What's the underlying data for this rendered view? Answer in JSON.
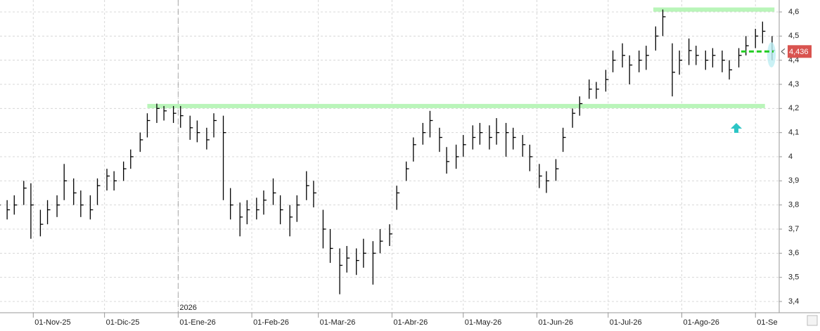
{
  "chart_data": {
    "type": "ohlc",
    "color": "#000000",
    "x": [
      "2025-10-17",
      "2025-10-21",
      "2025-10-24",
      "2025-10-28",
      "2025-10-31",
      "2025-11-04",
      "2025-11-07",
      "2025-11-11",
      "2025-11-14",
      "2025-11-18",
      "2025-11-21",
      "2025-11-25",
      "2025-11-28",
      "2025-12-02",
      "2025-12-05",
      "2025-12-09",
      "2025-12-12",
      "2025-12-16",
      "2025-12-19",
      "2025-12-23",
      "2025-12-26",
      "2025-12-30",
      "2026-01-02",
      "2026-01-06",
      "2026-01-09",
      "2026-01-13",
      "2026-01-16",
      "2026-01-20",
      "2026-01-23",
      "2026-01-27",
      "2026-01-30",
      "2026-02-03",
      "2026-02-06",
      "2026-02-10",
      "2026-02-13",
      "2026-02-17",
      "2026-02-20",
      "2026-02-24",
      "2026-02-27",
      "2026-03-03",
      "2026-03-06",
      "2026-03-10",
      "2026-03-13",
      "2026-03-17",
      "2026-03-20",
      "2026-03-24",
      "2026-03-27",
      "2026-03-31",
      "2026-04-03",
      "2026-04-07",
      "2026-04-10",
      "2026-04-14",
      "2026-04-17",
      "2026-04-21",
      "2026-04-24",
      "2026-04-28",
      "2026-05-01",
      "2026-05-05",
      "2026-05-08",
      "2026-05-12",
      "2026-05-15",
      "2026-05-19",
      "2026-05-22",
      "2026-05-26",
      "2026-05-29",
      "2026-06-02",
      "2026-06-05",
      "2026-06-09",
      "2026-06-12",
      "2026-06-16",
      "2026-06-19",
      "2026-06-23",
      "2026-06-26",
      "2026-06-30",
      "2026-07-03",
      "2026-07-07",
      "2026-07-10",
      "2026-07-14",
      "2026-07-17",
      "2026-07-21",
      "2026-07-24",
      "2026-07-28",
      "2026-07-31",
      "2026-08-04",
      "2026-08-07",
      "2026-08-11",
      "2026-08-14",
      "2026-08-18",
      "2026-08-21",
      "2026-08-25",
      "2026-08-28",
      "2026-09-01",
      "2026-09-04",
      "2026-09-08"
    ],
    "high": [
      3.83,
      3.82,
      3.84,
      3.9,
      3.89,
      3.78,
      3.82,
      3.84,
      3.97,
      3.91,
      3.86,
      3.84,
      3.91,
      3.95,
      3.94,
      3.98,
      4.03,
      4.1,
      4.18,
      4.22,
      4.21,
      4.21,
      4.21,
      4.17,
      4.15,
      4.12,
      4.18,
      4.17,
      3.87,
      3.81,
      3.82,
      3.83,
      3.86,
      3.91,
      3.84,
      3.8,
      3.84,
      3.94,
      3.9,
      3.78,
      3.7,
      3.62,
      3.63,
      3.62,
      3.66,
      3.65,
      3.7,
      3.72,
      3.88,
      3.98,
      4.08,
      4.14,
      4.19,
      4.12,
      4.04,
      4.05,
      4.09,
      4.13,
      4.14,
      4.13,
      4.16,
      4.14,
      4.12,
      4.09,
      4.05,
      3.97,
      3.94,
      3.99,
      4.12,
      4.2,
      4.25,
      4.32,
      4.31,
      4.36,
      4.44,
      4.47,
      4.42,
      4.44,
      4.46,
      4.54,
      4.61,
      4.47,
      4.44,
      4.49,
      4.46,
      4.44,
      4.45,
      4.44,
      4.4,
      4.45,
      4.5,
      4.53,
      4.56,
      4.5
    ],
    "low": [
      3.76,
      3.74,
      3.76,
      3.8,
      3.66,
      3.67,
      3.72,
      3.75,
      3.82,
      3.8,
      3.75,
      3.74,
      3.8,
      3.86,
      3.86,
      3.9,
      3.95,
      4.02,
      4.08,
      4.14,
      4.15,
      4.14,
      4.12,
      4.07,
      4.06,
      4.03,
      4.08,
      3.82,
      3.74,
      3.67,
      3.72,
      3.74,
      3.76,
      3.8,
      3.72,
      3.67,
      3.73,
      3.82,
      3.79,
      3.62,
      3.56,
      3.43,
      3.52,
      3.51,
      3.54,
      3.47,
      3.6,
      3.63,
      3.78,
      3.9,
      3.98,
      4.05,
      4.08,
      4.02,
      3.93,
      3.95,
      4.0,
      4.03,
      4.05,
      4.03,
      4.05,
      4.0,
      4.03,
      4.0,
      3.94,
      3.87,
      3.85,
      3.9,
      4.02,
      4.12,
      4.17,
      4.24,
      4.24,
      4.27,
      4.35,
      4.37,
      4.3,
      4.35,
      4.36,
      4.44,
      4.5,
      4.25,
      4.34,
      4.38,
      4.38,
      4.36,
      4.37,
      4.35,
      4.32,
      4.37,
      4.42,
      4.45,
      4.47,
      4.4
    ],
    "close": [
      3.8,
      3.78,
      3.8,
      3.87,
      3.8,
      3.72,
      3.78,
      3.8,
      3.9,
      3.85,
      3.8,
      3.78,
      3.88,
      3.92,
      3.9,
      3.95,
      4.0,
      4.07,
      4.15,
      4.2,
      4.19,
      4.18,
      4.17,
      4.12,
      4.1,
      4.07,
      4.15,
      4.1,
      3.8,
      3.75,
      3.78,
      3.78,
      3.82,
      3.85,
      3.78,
      3.75,
      3.8,
      3.88,
      3.85,
      3.7,
      3.62,
      3.55,
      3.58,
      3.57,
      3.6,
      3.6,
      3.65,
      3.68,
      3.85,
      3.95,
      4.05,
      4.1,
      4.15,
      4.08,
      3.98,
      4.0,
      4.05,
      4.08,
      4.1,
      4.08,
      4.1,
      4.1,
      4.08,
      4.05,
      4.0,
      3.92,
      3.9,
      3.95,
      4.08,
      4.18,
      4.22,
      4.28,
      4.28,
      4.32,
      4.4,
      4.42,
      4.38,
      4.4,
      4.42,
      4.5,
      4.58,
      4.35,
      4.4,
      4.44,
      4.42,
      4.4,
      4.42,
      4.4,
      4.36,
      4.42,
      4.46,
      4.5,
      4.52,
      4.44
    ],
    "xlim": [
      "2025-10-18",
      "2026-09-11"
    ],
    "xticks": [
      {
        "value": "2025-11-01",
        "label": "01-Nov-25"
      },
      {
        "value": "2025-12-01",
        "label": "01-Dic-25"
      },
      {
        "value": "2026-01-01",
        "label": "01-Ene-26"
      },
      {
        "value": "2026-02-01",
        "label": "01-Feb-26"
      },
      {
        "value": "2026-03-01",
        "label": "01-Mar-26"
      },
      {
        "value": "2026-04-01",
        "label": "01-Abr-26"
      },
      {
        "value": "2026-05-01",
        "label": "01-May-26"
      },
      {
        "value": "2026-06-01",
        "label": "01-Jun-26"
      },
      {
        "value": "2026-07-01",
        "label": "01-Jul-26"
      },
      {
        "value": "2026-08-01",
        "label": "01-Ago-26"
      },
      {
        "value": "2026-09-01",
        "label": "01-Se"
      }
    ],
    "ylim": [
      3.4,
      4.6
    ],
    "yticks": [
      {
        "value": 3.4,
        "label": "3,4"
      },
      {
        "value": 3.5,
        "label": "3,5"
      },
      {
        "value": 3.6,
        "label": "3,6"
      },
      {
        "value": 3.7,
        "label": "3,7"
      },
      {
        "value": 3.8,
        "label": "3,8"
      },
      {
        "value": 3.9,
        "label": "3,9"
      },
      4,
      {
        "value": 4.1,
        "label": "4,1"
      },
      {
        "value": 4.2,
        "label": "4,2"
      },
      {
        "value": 4.3,
        "label": "4,3"
      },
      {
        "value": 4.4,
        "label": "4,4"
      },
      {
        "value": 4.5,
        "label": "4,5"
      },
      {
        "value": 4.6,
        "label": "4,6"
      }
    ],
    "grid": true,
    "year_marker": {
      "x": "2026-01-01",
      "label": "2026"
    },
    "levels": [
      {
        "y": 4.61,
        "x0": "2026-07-20",
        "x1": "2026-09-09",
        "color": "#b9f5b9"
      },
      {
        "y": 4.21,
        "x0": "2025-12-19",
        "x1": "2026-09-05",
        "color": "#b9f5b9"
      }
    ],
    "last_price": {
      "value": 4.436,
      "label": "4,436",
      "line_start": "2026-08-26",
      "color": "#d9534f",
      "line_color": "#22cc22"
    }
  }
}
